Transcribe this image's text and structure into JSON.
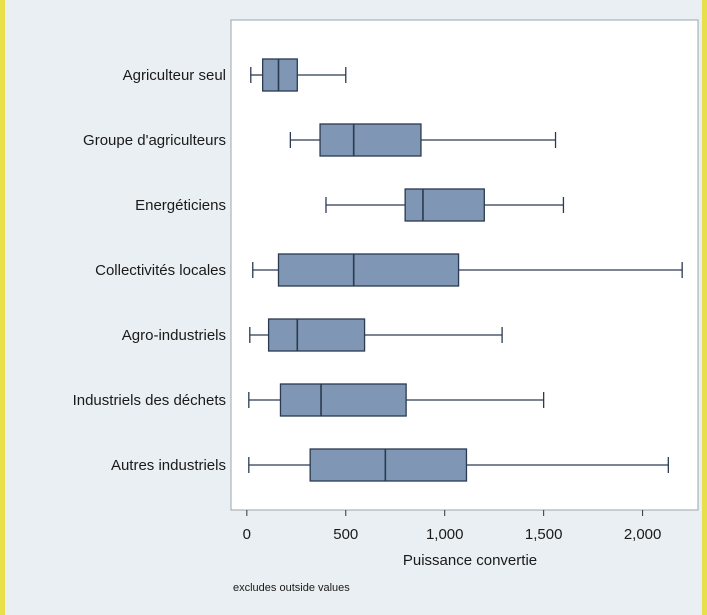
{
  "colors": {
    "page_background": "#e9eff2",
    "border_accent": "#e8e04a",
    "plot_background": "#ffffff",
    "box_fill": "#7f97b4",
    "box_stroke": "#2a3a50",
    "whisker": "#2a3a50"
  },
  "note": "excludes outside values",
  "chart_data": {
    "type": "box",
    "orientation": "horizontal",
    "xlabel": "Puissance convertie",
    "xlim": [
      -80,
      2280
    ],
    "xticks": [
      0,
      500,
      1000,
      1500,
      2000
    ],
    "xtick_labels": [
      "0",
      "500",
      "1,000",
      "1,500",
      "2,000"
    ],
    "grid": false,
    "categories": [
      "Agriculteur seul",
      "Groupe d'agriculteurs",
      "Energéticiens",
      "Collectivités locales",
      "Agro-industriels",
      "Industriels des déchets",
      "Autres industriels"
    ],
    "boxes": [
      {
        "category": "Agriculteur seul",
        "min": 20,
        "q1": 80,
        "median": 160,
        "q3": 255,
        "max": 500
      },
      {
        "category": "Groupe d'agriculteurs",
        "min": 220,
        "q1": 370,
        "median": 540,
        "q3": 880,
        "max": 1560
      },
      {
        "category": "Energéticiens",
        "min": 400,
        "q1": 800,
        "median": 890,
        "q3": 1200,
        "max": 1600
      },
      {
        "category": "Collectivités locales",
        "min": 30,
        "q1": 160,
        "median": 540,
        "q3": 1070,
        "max": 2200
      },
      {
        "category": "Agro-industriels",
        "min": 15,
        "q1": 110,
        "median": 255,
        "q3": 595,
        "max": 1290
      },
      {
        "category": "Industriels des déchets",
        "min": 10,
        "q1": 170,
        "median": 375,
        "q3": 805,
        "max": 1500
      },
      {
        "category": "Autres industriels",
        "min": 10,
        "q1": 320,
        "median": 700,
        "q3": 1110,
        "max": 2130
      }
    ]
  }
}
